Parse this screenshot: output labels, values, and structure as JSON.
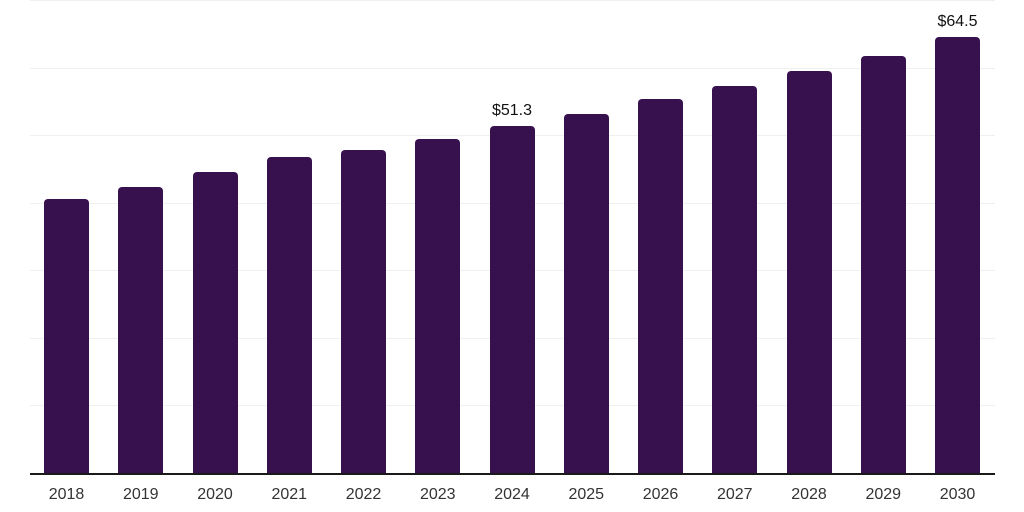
{
  "chart_data": {
    "type": "bar",
    "title": "",
    "xlabel": "",
    "ylabel": "",
    "categories": [
      "2018",
      "2019",
      "2020",
      "2021",
      "2022",
      "2023",
      "2024",
      "2025",
      "2026",
      "2027",
      "2028",
      "2029",
      "2030"
    ],
    "values": [
      40.6,
      42.3,
      44.6,
      46.7,
      47.8,
      49.5,
      51.3,
      53.2,
      55.3,
      57.3,
      59.5,
      61.7,
      64.5
    ],
    "data_labels": [
      "",
      "",
      "",
      "",
      "",
      "",
      "$51.3",
      "",
      "",
      "",
      "",
      "",
      "$64.5"
    ],
    "ylim": [
      0,
      70
    ],
    "gridline_step": 10,
    "grid": "horizontal",
    "y_tick_labels_visible": false,
    "legend_position": "none",
    "colors": {
      "bar": "#36114d",
      "axis_line": "#1a1a1a",
      "gridline": "#f0f0f0",
      "x_tick_label": "#333333",
      "data_label": "#111111",
      "background": "#ffffff"
    }
  }
}
